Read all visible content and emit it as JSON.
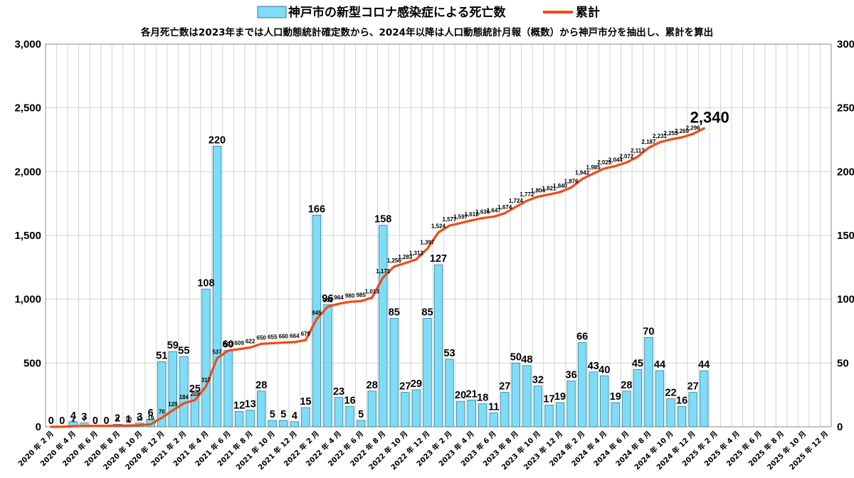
{
  "chart_data": {
    "type": "bar",
    "title": "",
    "subtitle": "各月死亡数は2023年までは人口動態統計確定数から、2024年以降は人口動態統計月報（概数）から神戸市分を抽出し、累計を算出",
    "legend": {
      "placement": "top",
      "bar_series": "神戸市の新型コロナ感染症による死亡数",
      "line_series": "累計"
    },
    "categories": [
      "2020年2月",
      "2020年3月",
      "2020年4月",
      "2020年5月",
      "2020年6月",
      "2020年7月",
      "2020年8月",
      "2020年9月",
      "2020年10月",
      "2020年11月",
      "2020年12月",
      "2021年1月",
      "2021年2月",
      "2021年3月",
      "2021年4月",
      "2021年5月",
      "2021年6月",
      "2021年7月",
      "2021年8月",
      "2021年9月",
      "2021年10月",
      "2021年11月",
      "2021年12月",
      "2022年1月",
      "2022年2月",
      "2022年3月",
      "2022年4月",
      "2022年5月",
      "2022年6月",
      "2022年7月",
      "2022年8月",
      "2022年9月",
      "2022年10月",
      "2022年11月",
      "2022年12月",
      "2023年1月",
      "2023年2月",
      "2023年3月",
      "2023年4月",
      "2023年5月",
      "2023年6月",
      "2023年7月",
      "2023年8月",
      "2023年9月",
      "2023年10月",
      "2023年11月",
      "2023年12月",
      "2024年1月",
      "2024年2月",
      "2024年3月",
      "2024年4月",
      "2024年5月",
      "2024年6月",
      "2024年7月",
      "2024年8月",
      "2024年9月",
      "2024年10月",
      "2024年11月",
      "2024年12月",
      "2025年1月",
      "2025年2月",
      "2025年3月",
      "2025年4月",
      "2025年5月",
      "2025年6月",
      "2025年7月",
      "2025年8月",
      "2025年9月",
      "2025年10月",
      "2025年11月",
      "2025年12月"
    ],
    "xtick_labels": [
      "2020 年 2 月",
      "2020 年 4 月",
      "2020 年 6 月",
      "2020 年 8 月",
      "2020 年 10 月",
      "2020 年 12 月",
      "2021 年 2 月",
      "2021 年 4 月",
      "2021 年 6 月",
      "2021 年 8 月",
      "2021 年 10 月",
      "2021 年 12 月",
      "2022 年 2 月",
      "2022 年 4 月",
      "2022 年 6 月",
      "2022 年 8 月",
      "2022 年 10 月",
      "2022 年 12 月",
      "2023 年 2 月",
      "2023 年 4 月",
      "2023 年 6 月",
      "2023 年 8 月",
      "2023 年 10 月",
      "2023 年 12 月",
      "2024 年 2 月",
      "2024 年 4 月",
      "2024 年 6 月",
      "2024 年 8 月",
      "2024 年 10 月",
      "2024 年 12 月",
      "2025 年 2 月",
      "2025 年 4 月",
      "2025 年 6 月",
      "2025 年 8 月",
      "2025 年 10 月",
      "2025 年 12 月"
    ],
    "monthly_deaths": [
      0,
      0,
      4,
      3,
      0,
      0,
      2,
      1,
      3,
      6,
      51,
      59,
      55,
      25,
      108,
      220,
      60,
      12,
      13,
      28,
      5,
      5,
      4,
      15,
      166,
      96,
      23,
      16,
      5,
      28,
      158,
      85,
      27,
      29,
      85,
      127,
      53,
      20,
      21,
      18,
      11,
      27,
      50,
      48,
      32,
      17,
      19,
      36,
      66,
      43,
      40,
      19,
      28,
      45,
      70,
      44,
      22,
      16,
      27,
      44
    ],
    "cumulative": [
      0,
      0,
      4,
      7,
      7,
      7,
      9,
      10,
      13,
      19,
      70,
      129,
      184,
      209,
      317,
      537,
      597,
      609,
      622,
      650,
      655,
      660,
      664,
      679,
      845,
      941,
      964,
      980,
      985,
      1013,
      1171,
      1256,
      1283,
      1312,
      1397,
      1524,
      1577,
      1597,
      1618,
      1636,
      1647,
      1674,
      1724,
      1772,
      1804,
      1821,
      1840,
      1876,
      1942,
      1985,
      2025,
      2044,
      2072,
      2117,
      2187,
      2231,
      2253,
      2269,
      2296,
      2340
    ],
    "cumulative_labels": [
      "",
      "",
      "4",
      "7",
      "",
      "",
      "9",
      "10",
      "13",
      "19",
      "70",
      "129",
      "184",
      "209",
      "317",
      "537",
      "597",
      "609",
      "622",
      "650",
      "655",
      "660",
      "664",
      "679",
      "845",
      "941",
      "964",
      "980",
      "985",
      "1,013",
      "1,171",
      "1,256",
      "1,283",
      "1,312",
      "1,397",
      "1,524",
      "1,577",
      "1,597",
      "1,618",
      "1,636",
      "1,647",
      "1,674",
      "1,724",
      "1,772",
      "1,804",
      "1,821",
      "1,840",
      "1,876",
      "1,942",
      "1,985",
      "2,025",
      "2,044",
      "2,072",
      "2,117",
      "2,187",
      "2,231",
      "2,253",
      "2,269",
      "2,296",
      "2,340"
    ],
    "y_left": {
      "ticks": [
        "0",
        "500",
        "1,000",
        "1,500",
        "2,000",
        "2,500",
        "3,000"
      ],
      "range": [
        0,
        3000
      ]
    },
    "y_right": {
      "ticks": [
        "0",
        "50",
        "100",
        "150",
        "200",
        "250",
        "300"
      ],
      "range": [
        0,
        300
      ]
    },
    "grid": true,
    "colors": {
      "bar_fill": "#7fdcf6",
      "bar_stroke": "#2e7d95",
      "line": "#f04a16",
      "grid": "#d4d4d4"
    }
  }
}
